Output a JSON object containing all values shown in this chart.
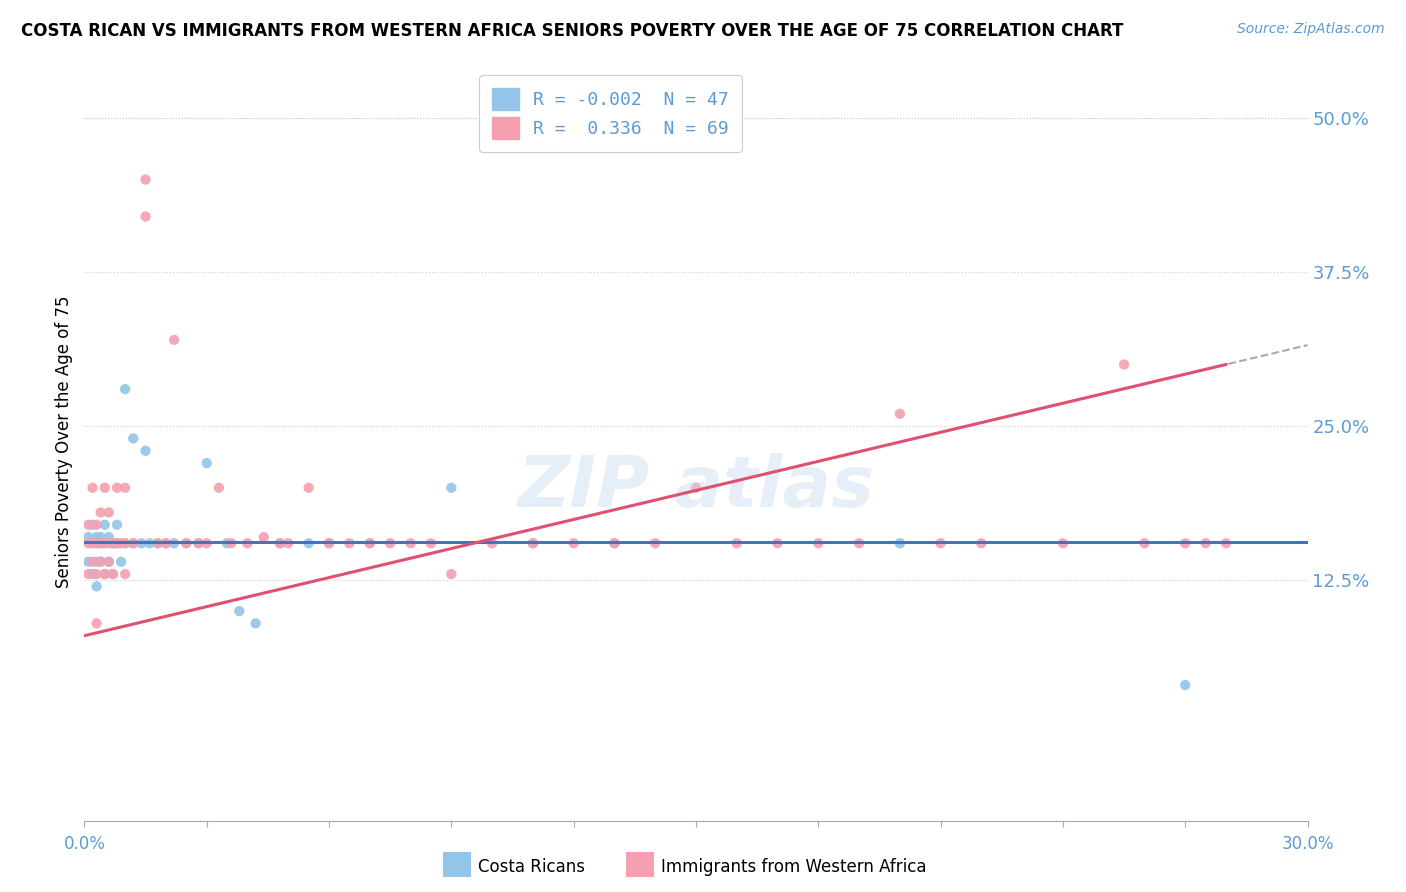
{
  "title": "COSTA RICAN VS IMMIGRANTS FROM WESTERN AFRICA SENIORS POVERTY OVER THE AGE OF 75 CORRELATION CHART",
  "source": "Source: ZipAtlas.com",
  "ylabel": "Seniors Poverty Over the Age of 75",
  "right_yticks": [
    0.125,
    0.25,
    0.375,
    0.5
  ],
  "right_yticklabels": [
    "12.5%",
    "25.0%",
    "37.5%",
    "50.0%"
  ],
  "xmin": 0.0,
  "xmax": 0.3,
  "ymin": -0.07,
  "ymax": 0.545,
  "r_blue": -0.002,
  "n_blue": 47,
  "r_pink": 0.336,
  "n_pink": 69,
  "blue_color": "#92C5E8",
  "pink_color": "#F4A0B0",
  "trend_blue_color": "#4472C4",
  "trend_pink_color": "#E05070",
  "blue_x": [
    0.001,
    0.001,
    0.002,
    0.002,
    0.002,
    0.003,
    0.003,
    0.003,
    0.003,
    0.004,
    0.004,
    0.004,
    0.005,
    0.005,
    0.005,
    0.006,
    0.006,
    0.007,
    0.007,
    0.008,
    0.008,
    0.009,
    0.01,
    0.01,
    0.012,
    0.012,
    0.014,
    0.015,
    0.016,
    0.018,
    0.02,
    0.022,
    0.025,
    0.028,
    0.03,
    0.035,
    0.038,
    0.042,
    0.048,
    0.055,
    0.06,
    0.07,
    0.09,
    0.11,
    0.13,
    0.2,
    0.27
  ],
  "blue_y": [
    0.14,
    0.16,
    0.13,
    0.155,
    0.17,
    0.14,
    0.155,
    0.16,
    0.12,
    0.155,
    0.16,
    0.14,
    0.13,
    0.155,
    0.17,
    0.16,
    0.14,
    0.155,
    0.13,
    0.155,
    0.17,
    0.14,
    0.155,
    0.28,
    0.155,
    0.24,
    0.155,
    0.23,
    0.155,
    0.155,
    0.155,
    0.155,
    0.155,
    0.155,
    0.22,
    0.155,
    0.1,
    0.09,
    0.155,
    0.155,
    0.155,
    0.155,
    0.2,
    0.155,
    0.155,
    0.155,
    0.04
  ],
  "pink_x": [
    0.001,
    0.001,
    0.001,
    0.002,
    0.002,
    0.002,
    0.003,
    0.003,
    0.003,
    0.003,
    0.004,
    0.004,
    0.004,
    0.005,
    0.005,
    0.005,
    0.006,
    0.006,
    0.006,
    0.007,
    0.007,
    0.008,
    0.008,
    0.009,
    0.01,
    0.01,
    0.01,
    0.012,
    0.015,
    0.015,
    0.018,
    0.02,
    0.022,
    0.025,
    0.028,
    0.03,
    0.033,
    0.036,
    0.04,
    0.044,
    0.048,
    0.05,
    0.055,
    0.06,
    0.065,
    0.07,
    0.075,
    0.08,
    0.085,
    0.09,
    0.1,
    0.11,
    0.12,
    0.13,
    0.14,
    0.15,
    0.16,
    0.17,
    0.18,
    0.19,
    0.2,
    0.21,
    0.22,
    0.24,
    0.255,
    0.26,
    0.27,
    0.275,
    0.28
  ],
  "pink_y": [
    0.13,
    0.155,
    0.17,
    0.14,
    0.155,
    0.2,
    0.13,
    0.155,
    0.17,
    0.09,
    0.155,
    0.14,
    0.18,
    0.13,
    0.155,
    0.2,
    0.155,
    0.14,
    0.18,
    0.155,
    0.13,
    0.155,
    0.2,
    0.155,
    0.155,
    0.13,
    0.2,
    0.155,
    0.45,
    0.42,
    0.155,
    0.155,
    0.32,
    0.155,
    0.155,
    0.155,
    0.2,
    0.155,
    0.155,
    0.16,
    0.155,
    0.155,
    0.2,
    0.155,
    0.155,
    0.155,
    0.155,
    0.155,
    0.155,
    0.13,
    0.155,
    0.155,
    0.155,
    0.155,
    0.155,
    0.2,
    0.155,
    0.155,
    0.155,
    0.155,
    0.26,
    0.155,
    0.155,
    0.155,
    0.3,
    0.155,
    0.155,
    0.155,
    0.155
  ],
  "legend_r_label1": "R = -0.002  N = 47",
  "legend_r_label2": "R =  0.336  N = 69"
}
